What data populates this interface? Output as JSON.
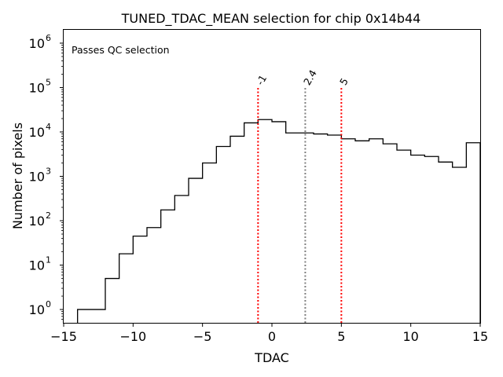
{
  "chart_data": {
    "type": "step-histogram",
    "title": "TUNED_TDAC_MEAN selection for chip 0x14b44",
    "xlabel": "TDAC",
    "ylabel": "Number of pixels",
    "xlim": [
      -15,
      15
    ],
    "ylim_log10": [
      -0.3,
      6.3
    ],
    "yscale": "log",
    "x_ticks": [
      -15,
      -10,
      -5,
      0,
      5,
      10,
      15
    ],
    "x_tick_labels": [
      "−15",
      "−10",
      "−5",
      "0",
      "5",
      "10",
      "15"
    ],
    "y_ticks_exp": [
      0,
      1,
      2,
      3,
      4,
      5,
      6
    ],
    "y_tick_base": "10",
    "bin_edges": [
      -14,
      -13,
      -12,
      -11,
      -10,
      -9,
      -8,
      -7,
      -6,
      -5,
      -4,
      -3,
      -2,
      -1,
      0,
      1,
      2,
      3,
      4,
      5,
      6,
      7,
      8,
      9,
      10,
      11,
      12,
      13,
      14,
      15
    ],
    "counts": [
      1,
      1,
      5,
      18,
      45,
      70,
      175,
      370,
      900,
      2000,
      4700,
      8000,
      16000,
      19000,
      17000,
      9500,
      9500,
      9000,
      8500,
      7000,
      6300,
      7000,
      5400,
      3900,
      3000,
      2800,
      2100,
      1600,
      5700
    ],
    "annotation": "Passes QC selection",
    "annotation_color": "#008000",
    "hist_color": "#000000",
    "vlines": [
      {
        "x": -1,
        "label": "-1",
        "color": "#ff0000",
        "y_top": 100000
      },
      {
        "x": 2.4,
        "label": "2.4",
        "color": "#808080",
        "y_top": 100000
      },
      {
        "x": 5,
        "label": "5",
        "color": "#ff0000",
        "y_top": 100000
      }
    ]
  }
}
